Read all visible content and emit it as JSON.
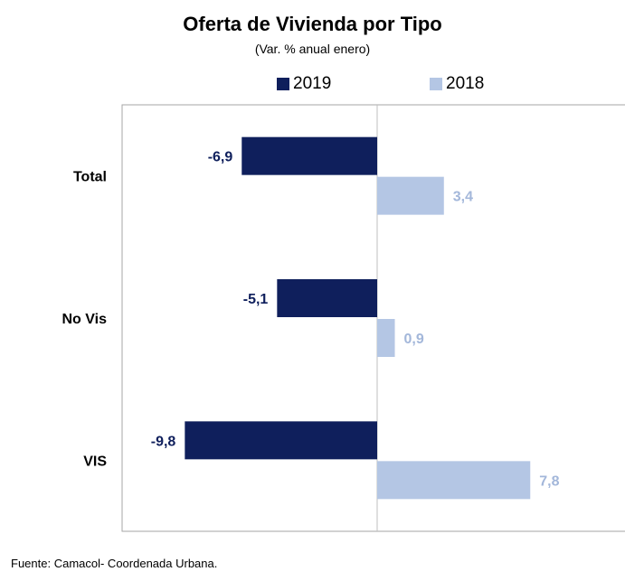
{
  "chart_data": {
    "type": "bar",
    "orientation": "horizontal",
    "title": "Oferta de Vivienda por Tipo",
    "subtitle": "(Var. % anual enero)",
    "categories": [
      "Total",
      "No Vis",
      "VIS"
    ],
    "series": [
      {
        "name": "2019",
        "values": [
          -6.9,
          -5.1,
          -9.8
        ],
        "labels": [
          "-6,9",
          "-5,1",
          "-9,8"
        ],
        "color": "#0f1f5c",
        "label_color": "#0f1f5c"
      },
      {
        "name": "2018",
        "values": [
          3.4,
          0.9,
          7.8
        ],
        "labels": [
          "3,4",
          "0,9",
          "7,8"
        ],
        "color": "#b4c6e4",
        "label_color": "#a3b7da"
      }
    ],
    "xlim": [
      -13,
      13
    ],
    "legend_position": "top"
  },
  "source": "Fuente: Camacol- Coordenada Urbana.",
  "colors": {
    "frame": "#a6a6a6",
    "zero_line": "#bfbfbf"
  }
}
